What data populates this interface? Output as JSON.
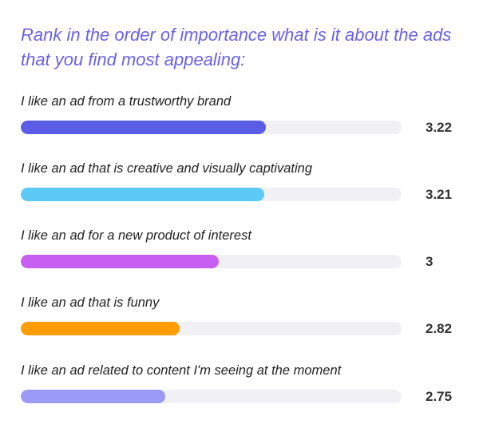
{
  "chart_data": {
    "type": "bar",
    "orientation": "horizontal",
    "title": "Rank in the order of importance what is it about the ads that you find most appealing:",
    "categories": [
      "I like an ad from a trustworthy brand",
      "I like an ad that is creative and visually captivating",
      "I like an ad for a new product of interest",
      "I like an ad that is funny",
      "I like an ad related to content I'm seeing at the moment"
    ],
    "values": [
      3.22,
      3.21,
      3,
      2.82,
      2.75
    ],
    "value_labels": [
      "3.22",
      "3.21",
      "3",
      "2.82",
      "2.75"
    ],
    "colors": [
      "#5b5ce6",
      "#5ccaf7",
      "#c85ff0",
      "#ff9d00",
      "#9c9af7"
    ],
    "track_color": "#f1f1f3",
    "xlim": [
      2.08,
      3.85
    ],
    "grid": false,
    "legend": "none"
  }
}
